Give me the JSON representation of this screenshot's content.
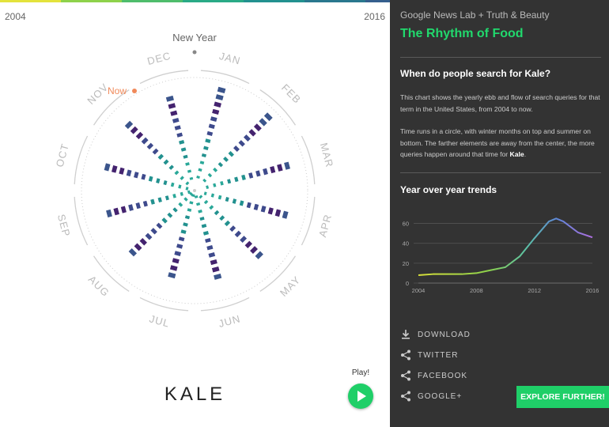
{
  "topbar_colors": [
    "#e4e33c",
    "#8ed24b",
    "#4fbd6c",
    "#2aaa86",
    "#22918f",
    "#2a788e",
    "#355f8d",
    "#44468f",
    "#482576",
    "#3e0f5f"
  ],
  "left": {
    "year_start": "2004",
    "year_end": "2016",
    "new_year_label": "New Year",
    "now_label": "Now",
    "months": [
      "JAN",
      "FEB",
      "MAR",
      "APR",
      "MAY",
      "JUN",
      "JUL",
      "AUG",
      "SEP",
      "OCT",
      "NOV",
      "DEC"
    ],
    "term": "KALE",
    "play_label": "Play!",
    "play_icon": "play-icon"
  },
  "right": {
    "credit": "Google News Lab + Truth & Beauty",
    "title": "The Rhythm of Food",
    "question_prefix": "When do people search for ",
    "question_term": "Kale",
    "question_suffix": "?",
    "para1": "This chart shows the yearly ebb and flow of search queries for that term in the United States, from 2004 to now.",
    "para2_text": "Time runs in a circle, with winter months on top and summer on bottom. The farther elements are away from the center, the more queries happen around that time for ",
    "para2_term": "Kale",
    "para2_end": ".",
    "trends_heading": "Year over year trends",
    "share": [
      {
        "label": "DOWNLOAD",
        "icon": "download-icon"
      },
      {
        "label": "TWITTER",
        "icon": "share-icon"
      },
      {
        "label": "FACEBOOK",
        "icon": "share-icon"
      },
      {
        "label": "GOOGLE+",
        "icon": "share-icon"
      }
    ],
    "explore_label": "EXPLORE FURTHER!",
    "accent": "#21d96d"
  },
  "chart_data": [
    {
      "type": "line",
      "x": [
        2004,
        2005,
        2006,
        2007,
        2008,
        2009,
        2010,
        2011,
        2012,
        2013,
        2013.5,
        2014,
        2015,
        2016
      ],
      "values": [
        8,
        9,
        9,
        9,
        10,
        13,
        16,
        27,
        45,
        62,
        65,
        62,
        51,
        46
      ],
      "xticks": [
        "2004",
        "2008",
        "2012",
        "2016"
      ],
      "yticks": [
        "0",
        "20",
        "40",
        "60"
      ],
      "ylim": [
        0,
        70
      ],
      "xlim": [
        2004,
        2016
      ],
      "grid": true
    }
  ]
}
